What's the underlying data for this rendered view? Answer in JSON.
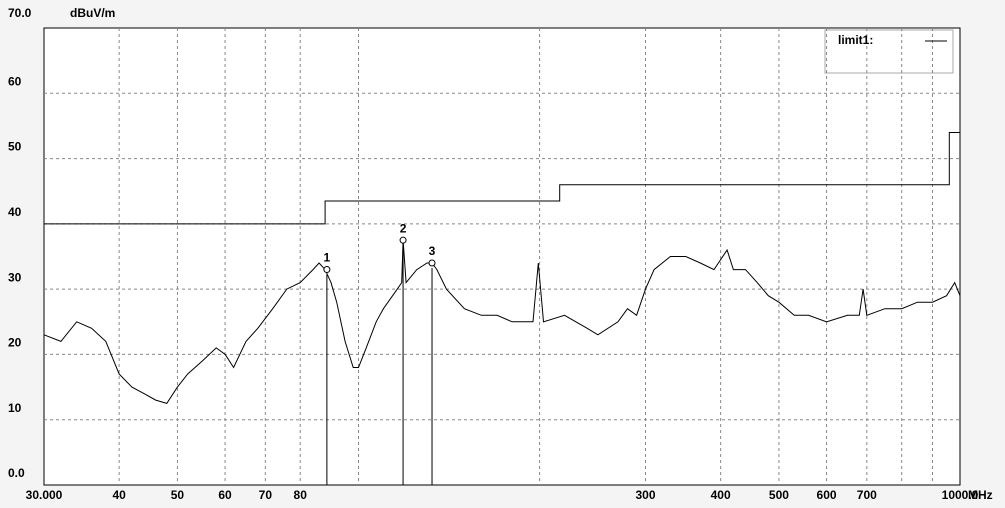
{
  "chart_data": {
    "type": "line",
    "y_label": "dBuV/m",
    "x_label": "MHz",
    "log_x": true,
    "grid": true,
    "xlim": [
      30,
      1000
    ],
    "ylim": [
      0,
      70
    ],
    "xticks": [
      {
        "value": 30,
        "label": "30.000"
      },
      40,
      50,
      60,
      70,
      80,
      {
        "value": 100,
        "label": null
      },
      {
        "value": 200,
        "label": null
      },
      300,
      400,
      500,
      600,
      700,
      {
        "value": 800,
        "label": null
      },
      {
        "value": 900,
        "label": null
      },
      {
        "value": 1000,
        "label": "1000.0"
      }
    ],
    "yticks": [
      {
        "value": 0,
        "label": "0.0"
      },
      10,
      20,
      30,
      40,
      50,
      60,
      {
        "value": 70,
        "label": "70.0"
      }
    ],
    "series": [
      {
        "name": "limit1",
        "color": "#000000",
        "x": [
          30,
          88,
          88,
          216,
          216,
          960,
          960,
          1000
        ],
        "values": [
          40,
          40,
          43.5,
          43.5,
          46,
          46,
          54,
          54
        ]
      },
      {
        "color": "#000000",
        "x": [
          30,
          32,
          34,
          36,
          38,
          40,
          42,
          44,
          46,
          48,
          50,
          52,
          55,
          58,
          60,
          62,
          65,
          68,
          72,
          76,
          80,
          84,
          86,
          88,
          90,
          92,
          95,
          98,
          100,
          103,
          107,
          110,
          116,
          118,
          118.6,
          120,
          125,
          130,
          132.5,
          135,
          140,
          150,
          160,
          170,
          180,
          195,
          199,
          203,
          220,
          240,
          250,
          270,
          280,
          290,
          300,
          310,
          330,
          350,
          370,
          390,
          410,
          420,
          440,
          460,
          480,
          500,
          530,
          560,
          600,
          650,
          680,
          690,
          700,
          750,
          800,
          850,
          900,
          950,
          980,
          1000
        ],
        "values": [
          23,
          22,
          25,
          24,
          22,
          17,
          15,
          14,
          13,
          12.5,
          15,
          17,
          19,
          21,
          20,
          18,
          22,
          24,
          27,
          30,
          31,
          33,
          34,
          33,
          31,
          28,
          22,
          18,
          18,
          21,
          25,
          27,
          30,
          31,
          37.5,
          31,
          33,
          34,
          34,
          33,
          30,
          27,
          26,
          26,
          25,
          25,
          34,
          25,
          26,
          24,
          23,
          25,
          27,
          26,
          30,
          33,
          35,
          35,
          34,
          33,
          36,
          33,
          33,
          31,
          29,
          28,
          26,
          26,
          25,
          26,
          26,
          30,
          26,
          27,
          27,
          28,
          28,
          29,
          31,
          29
        ]
      }
    ],
    "markers": [
      {
        "label": "1",
        "x": 88.6,
        "value": 33
      },
      {
        "label": "2",
        "x": 118.6,
        "value": 37.5
      },
      {
        "label": "3",
        "x": 132.5,
        "value": 34
      }
    ],
    "legend": "upper right"
  }
}
